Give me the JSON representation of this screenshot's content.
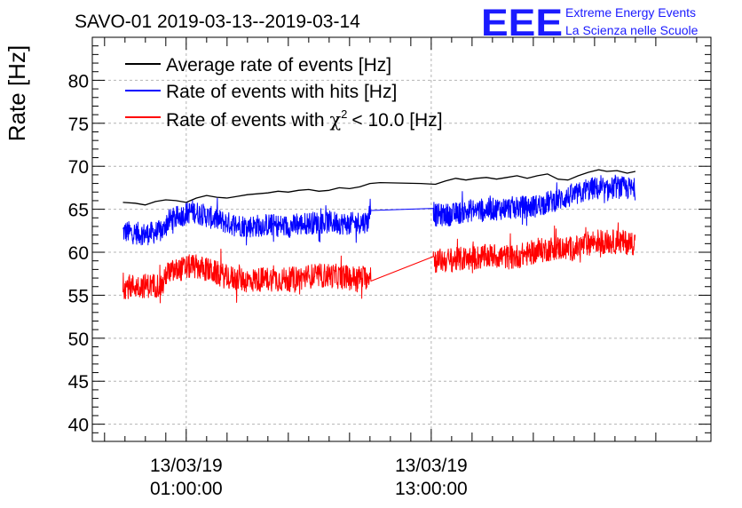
{
  "header": {
    "title": "SAVO-01 2019-03-13--2019-03-14",
    "logo": {
      "mark": "EEE",
      "line1": "Extreme Energy Events",
      "line2": "La Scienza nelle Scuole",
      "color": "#1a1aff"
    }
  },
  "chart_data": {
    "type": "line",
    "title": "SAVO-01 2019-03-13--2019-03-14",
    "xlabel": "",
    "ylabel": "Rate [Hz]",
    "x_unit": "hours since 2019-03-13 00:00",
    "xlim": [
      -3.6,
      26.7
    ],
    "ylim": [
      38,
      85
    ],
    "yticks": [
      40,
      45,
      50,
      55,
      60,
      65,
      70,
      75,
      80
    ],
    "ytick_labels": [
      "40",
      "45",
      "50",
      "55",
      "60",
      "65",
      "70",
      "75",
      "80"
    ],
    "xticks": [
      {
        "x": 1,
        "line1": "13/03/19",
        "line2": "01:00:00"
      },
      {
        "x": 13,
        "line1": "13/03/19",
        "line2": "13:00:00"
      }
    ],
    "grid": true,
    "legend": {
      "placement": "top-left",
      "entries": [
        {
          "label": "Average rate of events [Hz]",
          "color": "#000000"
        },
        {
          "label": "Rate of events with hits [Hz]",
          "color": "#0000ff"
        },
        {
          "label": "Rate of events with",
          "chi_symbol": "χ",
          "chi_sup": "2",
          "tail": "< 10.0 [Hz]",
          "color": "#ff0000"
        }
      ]
    },
    "series": [
      {
        "name": "Average rate of events [Hz]",
        "color": "#000000",
        "noise": 0,
        "points": [
          [
            -2.1,
            65.8
          ],
          [
            -1.5,
            65.7
          ],
          [
            -1.0,
            65.5
          ],
          [
            -0.5,
            65.9
          ],
          [
            0.0,
            66.1
          ],
          [
            0.5,
            66.0
          ],
          [
            1.0,
            65.8
          ],
          [
            1.5,
            66.3
          ],
          [
            2.0,
            66.6
          ],
          [
            2.5,
            66.4
          ],
          [
            3.0,
            66.3
          ],
          [
            3.5,
            66.5
          ],
          [
            4.0,
            66.7
          ],
          [
            4.5,
            66.8
          ],
          [
            5.0,
            66.9
          ],
          [
            5.5,
            67.1
          ],
          [
            6.0,
            67.0
          ],
          [
            6.5,
            67.2
          ],
          [
            7.0,
            67.3
          ],
          [
            7.5,
            67.1
          ],
          [
            8.0,
            67.2
          ],
          [
            8.5,
            67.5
          ],
          [
            9.0,
            67.4
          ],
          [
            9.5,
            67.6
          ],
          [
            10.0,
            68.0
          ],
          [
            10.5,
            68.1
          ],
          [
            12.5,
            68.0
          ],
          [
            13.2,
            67.9
          ],
          [
            13.7,
            68.3
          ],
          [
            14.2,
            68.6
          ],
          [
            14.7,
            68.4
          ],
          [
            15.2,
            68.6
          ],
          [
            15.7,
            68.7
          ],
          [
            16.2,
            68.5
          ],
          [
            16.7,
            68.7
          ],
          [
            17.2,
            68.9
          ],
          [
            17.7,
            68.6
          ],
          [
            18.2,
            68.9
          ],
          [
            18.7,
            69.1
          ],
          [
            19.2,
            68.5
          ],
          [
            19.7,
            68.4
          ],
          [
            20.2,
            68.9
          ],
          [
            20.7,
            69.3
          ],
          [
            21.2,
            69.6
          ],
          [
            21.6,
            69.4
          ],
          [
            22.1,
            69.5
          ],
          [
            22.6,
            69.2
          ],
          [
            23.0,
            69.4
          ]
        ]
      },
      {
        "name": "Rate of events with hits [Hz]",
        "color": "#0000ff",
        "noise": 1.2,
        "points": [
          [
            -2.1,
            62.4
          ],
          [
            -1.0,
            62.1
          ],
          [
            -0.1,
            62.5
          ],
          [
            0.0,
            63.5
          ],
          [
            1.3,
            64.8
          ],
          [
            2.0,
            64.2
          ],
          [
            3.0,
            63.4
          ],
          [
            4.0,
            63.0
          ],
          [
            5.0,
            63.2
          ],
          [
            6.0,
            63.0
          ],
          [
            7.0,
            63.4
          ],
          [
            8.0,
            63.5
          ],
          [
            9.0,
            63.3
          ],
          [
            9.9,
            63.6
          ],
          [
            10.0,
            64.8
          ],
          [
            10.1,
            65.6
          ],
          [
            13.1,
            65.1
          ],
          [
            13.2,
            64.3
          ],
          [
            14.0,
            64.4
          ],
          [
            15.0,
            64.9
          ],
          [
            16.0,
            65.0
          ],
          [
            17.0,
            65.2
          ],
          [
            18.0,
            65.3
          ],
          [
            19.0,
            66.0
          ],
          [
            20.0,
            66.6
          ],
          [
            21.0,
            67.5
          ],
          [
            21.5,
            67.0
          ],
          [
            22.0,
            67.6
          ],
          [
            23.0,
            67.3
          ]
        ]
      },
      {
        "name": "Rate of events with chi2 < 10.0 [Hz]",
        "color": "#ff0000",
        "noise": 1.3,
        "points": [
          [
            -2.1,
            56.0
          ],
          [
            -1.0,
            56.1
          ],
          [
            -0.1,
            56.2
          ],
          [
            0.0,
            57.5
          ],
          [
            1.3,
            58.4
          ],
          [
            2.0,
            58.0
          ],
          [
            3.0,
            57.1
          ],
          [
            4.0,
            56.7
          ],
          [
            5.0,
            56.9
          ],
          [
            6.0,
            56.8
          ],
          [
            7.0,
            57.2
          ],
          [
            8.0,
            57.3
          ],
          [
            9.0,
            57.0
          ],
          [
            9.9,
            57.1
          ],
          [
            10.0,
            57.8
          ],
          [
            13.1,
            59.5
          ],
          [
            13.2,
            59.0
          ],
          [
            14.0,
            59.1
          ],
          [
            15.0,
            59.3
          ],
          [
            16.0,
            59.6
          ],
          [
            17.0,
            59.4
          ],
          [
            18.0,
            60.0
          ],
          [
            19.0,
            60.5
          ],
          [
            20.0,
            60.4
          ],
          [
            21.0,
            61.3
          ],
          [
            22.0,
            61.2
          ],
          [
            23.0,
            61.1
          ]
        ]
      }
    ]
  }
}
